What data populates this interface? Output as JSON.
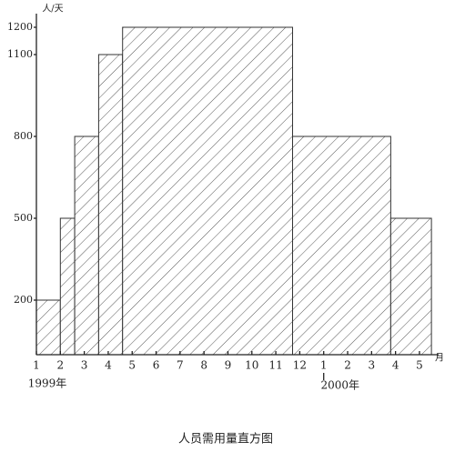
{
  "chart_data": {
    "type": "histogram",
    "title": "人员需用量直方图",
    "y_label": "人/天",
    "x_label": "月",
    "annotations": [
      "1999年",
      "2000年"
    ],
    "bins": [
      1,
      2,
      2.6,
      3.6,
      4.6,
      11.7,
      15.8,
      17.5
    ],
    "values": [
      200,
      500,
      800,
      1100,
      1200,
      800,
      500
    ],
    "color": "#333333",
    "xlim": [
      1,
      17.8
    ],
    "ylim": [
      0,
      1250
    ],
    "xticks": [
      1,
      2,
      3,
      4,
      5,
      6,
      7,
      8,
      9,
      10,
      11,
      12,
      {
        "value": 13,
        "label": "1"
      },
      {
        "value": 14,
        "label": "2"
      },
      {
        "value": 15,
        "label": "3"
      },
      {
        "value": 16,
        "label": "4"
      },
      {
        "value": 17,
        "label": "5"
      }
    ],
    "yticks": [
      200,
      500,
      800,
      1100,
      1200
    ],
    "hatch": true
  }
}
